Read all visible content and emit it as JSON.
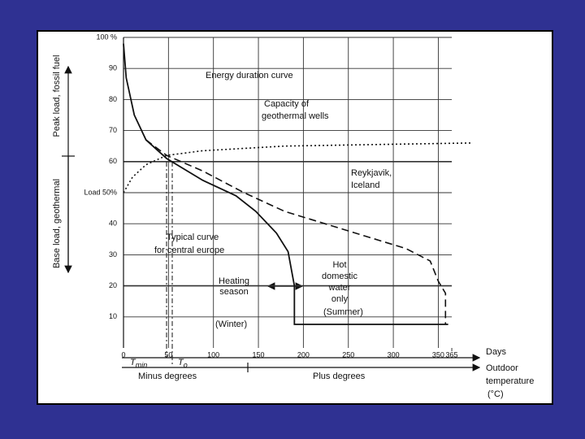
{
  "chart_data": {
    "type": "line",
    "xlim": [
      0,
      390
    ],
    "ylim": [
      0,
      100
    ],
    "xticks": [
      0,
      50,
      100,
      150,
      200,
      250,
      300,
      350,
      365
    ],
    "yticks": [
      10,
      20,
      30,
      40,
      {
        "value": 50,
        "label": "Load 50%"
      },
      60,
      70,
      80,
      90,
      {
        "value": 100,
        "label": "100 %"
      }
    ],
    "grid": true,
    "series": [
      {
        "label": [
          "Typical curve",
          "for central europe"
        ],
        "color": "#111111",
        "style": "solid",
        "x": [
          0,
          3,
          12,
          25,
          48,
          88,
          125,
          147,
          170,
          183,
          190,
          190,
          361
        ],
        "values": [
          98,
          87,
          75,
          67,
          61,
          54,
          49,
          44,
          37,
          31,
          20,
          7.6,
          7.6
        ]
      },
      {
        "label": [
          "Reykjavik,",
          "Iceland"
        ],
        "color": "#111111",
        "style": "dashed",
        "x": [
          25,
          48,
          88,
          134,
          179,
          224,
          269,
          314,
          341,
          350,
          358,
          358
        ],
        "values": [
          67,
          62,
          57,
          50,
          44,
          40,
          36,
          32,
          28,
          21.5,
          17.6,
          7.6
        ]
      },
      {
        "label": [
          "Capacity of",
          "geothermal wells"
        ],
        "color": "#111111",
        "style": "dotted",
        "x": [
          0,
          10,
          25,
          48,
          88,
          179,
          280,
          387
        ],
        "values": [
          50,
          55,
          59,
          62,
          63.5,
          65,
          65.5,
          66
        ]
      }
    ],
    "annotations": [
      {
        "lines": [
          "Energy duration curve"
        ]
      },
      {
        "lines": [
          "Heating",
          "season"
        ]
      },
      {
        "lines": [
          "Hot",
          "domestic",
          "water",
          "only"
        ]
      },
      {
        "lines": [
          "(Summer)"
        ]
      },
      {
        "lines": [
          "(Winter)"
        ]
      },
      {
        "lines": [
          "Days"
        ]
      },
      {
        "lines": [
          "Outdoor",
          "temperature",
          "(°C)"
        ]
      },
      {
        "lines": [
          "Minus degrees"
        ]
      },
      {
        "lines": [
          "Plus degrees"
        ]
      }
    ],
    "temperature_marks": [
      {
        "symbol": "T",
        "subscript": "min"
      },
      {
        "symbol": "T",
        "subscript": "o"
      }
    ],
    "y_axis_labels": [
      "Base load, geothermal",
      "Peak load, fossil fuel"
    ]
  }
}
